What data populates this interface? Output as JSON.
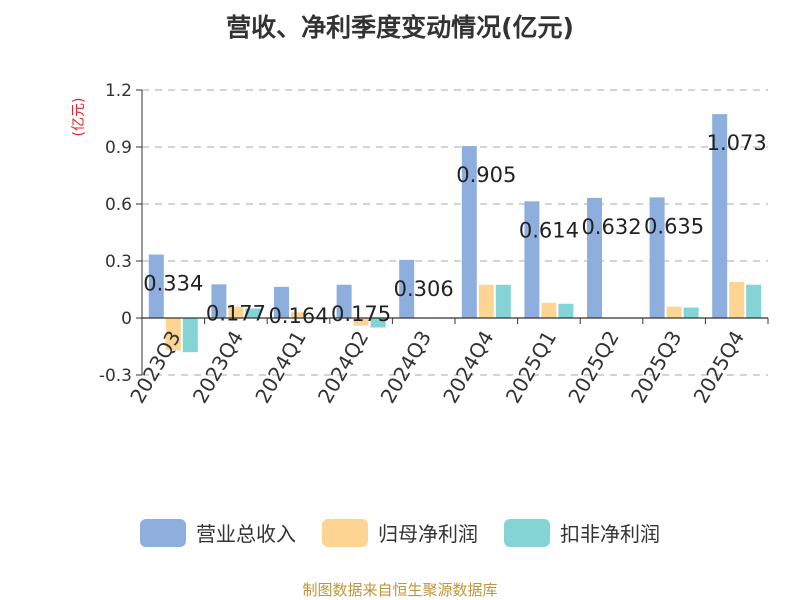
{
  "title": "营收、净利季度变动情况(亿元)",
  "source": "制图数据来自恒生聚源数据库",
  "chart_data": {
    "type": "bar",
    "title": "营收、净利季度变动情况(亿元)",
    "ylabel": "(亿元)",
    "xlabel": "",
    "ylim": [
      -0.3,
      1.2
    ],
    "yticks": [
      1.2,
      0.9,
      0.6,
      0.3,
      0,
      -0.3
    ],
    "ytick_labels": [
      "1.2",
      "0.9",
      "0.6",
      "0.3",
      "0",
      "-0.3"
    ],
    "grid": true,
    "legend_position": "bottom",
    "categories": [
      "2023Q3",
      "2023Q4",
      "2024Q1",
      "2024Q2",
      "2024Q3",
      "2024Q4",
      "2025Q1",
      "2025Q2",
      "2025Q3",
      "2025Q4"
    ],
    "series": [
      {
        "name": "营业总收入",
        "color": "#8eaedd",
        "values": [
          0.334,
          0.177,
          0.164,
          0.175,
          0.306,
          0.905,
          0.614,
          0.632,
          0.635,
          1.073
        ]
      },
      {
        "name": "归母净利润",
        "color": "#fdd592",
        "values": [
          -0.17,
          0.06,
          0.03,
          -0.04,
          0.003,
          0.175,
          0.08,
          0.002,
          0.06,
          0.19
        ]
      },
      {
        "name": "扣非净利润",
        "color": "#84d3d5",
        "values": [
          -0.18,
          0.05,
          0.005,
          -0.05,
          0.002,
          0.175,
          0.075,
          0.002,
          0.055,
          0.175
        ]
      }
    ],
    "data_labels": [
      "0.334",
      "0.177",
      "0.164",
      "0.175",
      "0.306",
      "0.905",
      "0.614",
      "0.632",
      "0.635",
      "1.073"
    ]
  }
}
